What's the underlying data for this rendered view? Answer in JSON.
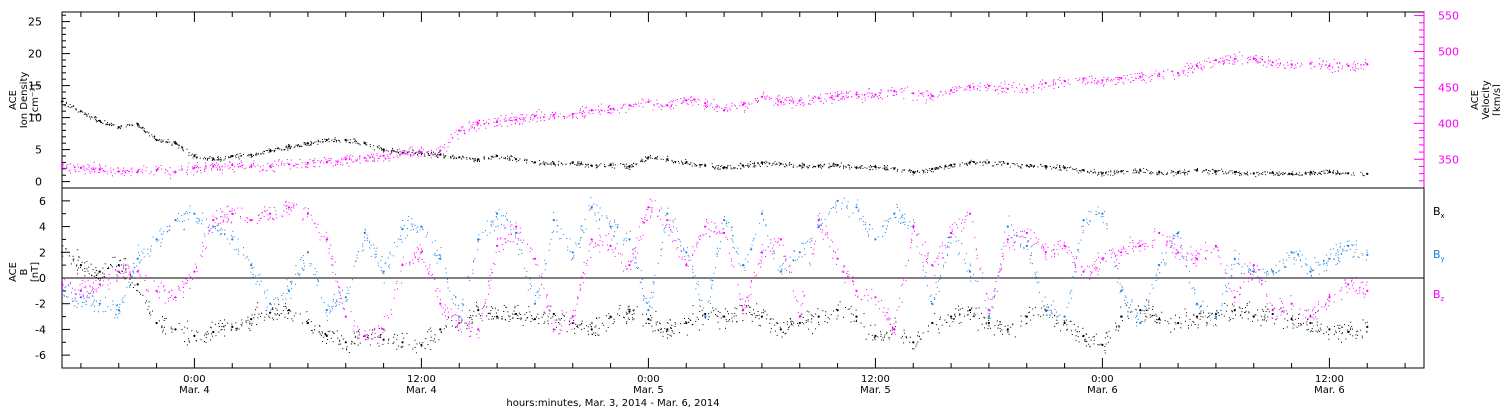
{
  "chart_data": [
    {
      "type": "scatter",
      "panel": "top",
      "xlabel": "hours:minutes, Mar.  3, 2014 - Mar.  6, 2014",
      "x_unit": "hours since Mar. 3, 2014 00:00",
      "xlim": [
        17,
        89
      ],
      "x_ticks": [
        {
          "x": 24,
          "time": "0:00",
          "date": "Mar. 4"
        },
        {
          "x": 36,
          "time": "12:00",
          "date": "Mar. 4"
        },
        {
          "x": 48,
          "time": "0:00",
          "date": "Mar. 5"
        },
        {
          "x": 60,
          "time": "12:00",
          "date": "Mar. 5"
        },
        {
          "x": 72,
          "time": "0:00",
          "date": "Mar. 6"
        },
        {
          "x": 84,
          "time": "12:00",
          "date": "Mar. 6"
        }
      ],
      "left_axis": {
        "label_lines": [
          "ACE",
          "Ion Density",
          "[cm⁻³]"
        ],
        "ylim": [
          -1,
          26.5
        ],
        "ticks": [
          "0",
          "5",
          "10",
          "15",
          "20",
          "25"
        ],
        "tick_values": [
          0,
          5,
          10,
          15,
          20,
          25
        ]
      },
      "right_axis": {
        "label_lines": [
          "ACE",
          "Velocity",
          "[km/s]"
        ],
        "ylim": [
          310,
          555
        ],
        "ticks": [
          "350",
          "400",
          "450",
          "500",
          "550"
        ],
        "tick_values": [
          350,
          400,
          450,
          500,
          550
        ],
        "color": "#ff00ff"
      },
      "series": [
        {
          "color": "#000000",
          "axis": "left",
          "x": [
            17,
            18,
            19,
            20,
            21,
            22,
            23,
            24,
            25,
            26,
            27,
            28,
            29,
            30,
            31,
            32,
            33,
            34,
            35,
            36,
            37,
            38,
            39,
            40,
            41,
            42,
            43,
            44,
            45,
            46,
            47,
            48,
            49,
            50,
            51,
            52,
            53,
            54,
            55,
            56,
            57,
            58,
            59,
            60,
            61,
            62,
            63,
            64,
            65,
            66,
            67,
            68,
            69,
            70,
            71,
            72,
            73,
            74,
            75,
            76,
            77,
            78,
            79,
            80,
            81,
            82,
            83,
            84,
            85,
            86
          ],
          "values": [
            12.5,
            11,
            9.5,
            8.5,
            9,
            6.5,
            6,
            4,
            3.5,
            4,
            4.2,
            4.8,
            5.5,
            6,
            6.5,
            6.5,
            6,
            5,
            4.5,
            4.5,
            4.2,
            3.8,
            3.5,
            4,
            3.5,
            3,
            2.8,
            3,
            2.5,
            2.6,
            2.4,
            3.8,
            3.5,
            3,
            2.5,
            2.2,
            2.5,
            3,
            2.8,
            2.5,
            2.5,
            2.6,
            2.2,
            2.3,
            2,
            1.5,
            2,
            2.6,
            3,
            3,
            2.8,
            2.5,
            2.4,
            2.2,
            1.8,
            1.3,
            1.6,
            1.7,
            1.5,
            1.5,
            1.8,
            1.6,
            1.5,
            1.3,
            1.4,
            1.2,
            1.4,
            1.5,
            1.3,
            1.2
          ]
        },
        {
          "color": "#ff00ff",
          "axis": "right",
          "x": [
            17,
            18,
            19,
            20,
            21,
            22,
            23,
            24,
            25,
            26,
            27,
            28,
            29,
            30,
            31,
            32,
            33,
            34,
            35,
            36,
            37,
            38,
            39,
            40,
            41,
            42,
            43,
            44,
            45,
            46,
            47,
            48,
            49,
            50,
            51,
            52,
            53,
            54,
            55,
            56,
            57,
            58,
            59,
            60,
            61,
            62,
            63,
            64,
            65,
            66,
            67,
            68,
            69,
            70,
            71,
            72,
            73,
            74,
            75,
            76,
            77,
            78,
            79,
            80,
            81,
            82,
            83,
            84,
            85,
            86
          ],
          "values": [
            340,
            338,
            336,
            333,
            333,
            335,
            332,
            338,
            340,
            342,
            340,
            340,
            343,
            345,
            346,
            350,
            352,
            355,
            358,
            360,
            362,
            390,
            400,
            402,
            405,
            410,
            412,
            413,
            418,
            420,
            425,
            430,
            425,
            432,
            428,
            418,
            426,
            437,
            430,
            432,
            435,
            438,
            440,
            440,
            445,
            442,
            438,
            446,
            450,
            452,
            448,
            448,
            456,
            459,
            462,
            460,
            463,
            465,
            468,
            470,
            480,
            488,
            490,
            490,
            485,
            482,
            483,
            480,
            480,
            482
          ]
        }
      ]
    },
    {
      "type": "scatter",
      "panel": "bottom",
      "xlim": [
        17,
        89
      ],
      "left_axis": {
        "label_lines": [
          "ACE",
          "B",
          "[nT]"
        ],
        "ylim": [
          -7,
          7
        ],
        "ticks": [
          "-6",
          "-4",
          "-2",
          "0",
          "2",
          "4",
          "6"
        ],
        "tick_values": [
          -6,
          -4,
          -2,
          0,
          2,
          4,
          6
        ]
      },
      "zero_line": true,
      "legend_position": "right",
      "series": [
        {
          "name": "Bx",
          "name_base": "B",
          "name_sub": "x",
          "color": "#000000",
          "x": [
            17,
            18,
            19,
            20,
            21,
            22,
            23,
            24,
            25,
            26,
            27,
            28,
            29,
            30,
            31,
            32,
            33,
            34,
            35,
            36,
            37,
            38,
            39,
            40,
            41,
            42,
            43,
            44,
            45,
            46,
            47,
            48,
            49,
            50,
            51,
            52,
            53,
            54,
            55,
            56,
            57,
            58,
            59,
            60,
            61,
            62,
            63,
            64,
            65,
            66,
            67,
            68,
            69,
            70,
            71,
            72,
            73,
            74,
            75,
            76,
            77,
            78,
            79,
            80,
            81,
            82,
            83,
            84,
            85,
            86
          ],
          "values": [
            2.0,
            1.0,
            0.5,
            1.0,
            -0.5,
            -3.5,
            -4.0,
            -4.5,
            -4.2,
            -3.8,
            -3.2,
            -2.7,
            -2.5,
            -3.5,
            -4.5,
            -5.0,
            -4.5,
            -4.8,
            -5.0,
            -5.2,
            -4.0,
            -3.5,
            -2.5,
            -3.0,
            -2.8,
            -3.2,
            -2.8,
            -3.5,
            -4.0,
            -3.0,
            -2.6,
            -3.2,
            -4.0,
            -3.5,
            -2.8,
            -3.0,
            -2.5,
            -3.0,
            -4.0,
            -3.5,
            -3.0,
            -2.5,
            -3.0,
            -4.5,
            -4.0,
            -5.0,
            -3.5,
            -3.0,
            -2.5,
            -3.5,
            -4.0,
            -3.0,
            -2.5,
            -3.5,
            -4.5,
            -5.2,
            -3.0,
            -2.5,
            -3.2,
            -3.5,
            -3.0,
            -2.8,
            -2.5,
            -3.0,
            -2.8,
            -3.2,
            -3.5,
            -4.0,
            -4.2,
            -3.8
          ]
        },
        {
          "name": "By",
          "name_base": "B",
          "name_sub": "y",
          "color": "#1e7fe0",
          "x": [
            17,
            18,
            19,
            20,
            21,
            22,
            23,
            24,
            25,
            26,
            27,
            28,
            29,
            30,
            31,
            32,
            33,
            34,
            35,
            36,
            37,
            38,
            39,
            40,
            41,
            42,
            43,
            44,
            45,
            46,
            47,
            48,
            49,
            50,
            51,
            52,
            53,
            54,
            55,
            56,
            57,
            58,
            59,
            60,
            61,
            62,
            63,
            64,
            65,
            66,
            67,
            68,
            69,
            70,
            71,
            72,
            73,
            74,
            75,
            76,
            77,
            78,
            79,
            80,
            81,
            82,
            83,
            84,
            85,
            86
          ],
          "values": [
            -1.0,
            -1.5,
            -2.0,
            -2.5,
            1.5,
            3.0,
            4.5,
            5.0,
            4.0,
            3.0,
            1.0,
            -2.0,
            -1.0,
            2.0,
            -2.5,
            -1.5,
            3.5,
            0.5,
            3.8,
            4.0,
            1.5,
            -3.0,
            3.0,
            5.0,
            3.5,
            -2.0,
            4.5,
            2.0,
            5.5,
            4.0,
            3.0,
            -2.5,
            5.0,
            2.0,
            -3.0,
            4.5,
            1.0,
            5.0,
            0.5,
            2.0,
            4.0,
            6.0,
            5.5,
            3.0,
            5.0,
            4.0,
            -2.0,
            3.5,
            0.5,
            -3.0,
            4.0,
            2.5,
            -2.5,
            -3.0,
            4.5,
            5.0,
            -1.0,
            -3.5,
            1.0,
            3.5,
            -2.0,
            -3.0,
            1.5,
            0.5,
            0.5,
            2.0,
            0.5,
            1.5,
            2.5,
            1.8
          ]
        },
        {
          "name": "Bz",
          "name_base": "B",
          "name_sub": "z",
          "color": "#ff00ff",
          "x": [
            17,
            18,
            19,
            20,
            21,
            22,
            23,
            24,
            25,
            26,
            27,
            28,
            29,
            30,
            31,
            32,
            33,
            34,
            35,
            36,
            37,
            38,
            39,
            40,
            41,
            42,
            43,
            44,
            45,
            46,
            47,
            48,
            49,
            50,
            51,
            52,
            53,
            54,
            55,
            56,
            57,
            58,
            59,
            60,
            61,
            62,
            63,
            64,
            65,
            66,
            67,
            68,
            69,
            70,
            71,
            72,
            73,
            74,
            75,
            76,
            77,
            78,
            79,
            80,
            81,
            82,
            83,
            84,
            85,
            86
          ],
          "values": [
            -0.5,
            -1.0,
            -0.5,
            0.5,
            0.5,
            -1.0,
            -1.5,
            0.5,
            4.5,
            5.0,
            4.5,
            5.0,
            5.5,
            5.0,
            3.0,
            -3.0,
            -4.5,
            -4.0,
            1.0,
            2.0,
            -2.0,
            -3.5,
            -4.0,
            2.5,
            4.0,
            1.5,
            -4.0,
            -3.0,
            3.0,
            2.5,
            1.0,
            5.5,
            4.5,
            1.0,
            4.0,
            3.5,
            -2.5,
            2.0,
            3.0,
            -3.0,
            4.5,
            1.5,
            -1.0,
            -1.5,
            -4.0,
            4.0,
            1.0,
            3.5,
            5.0,
            -2.5,
            3.0,
            3.5,
            2.0,
            2.5,
            0.5,
            1.5,
            2.0,
            2.5,
            3.5,
            2.0,
            1.5,
            2.5,
            -1.5,
            1.0,
            -2.5,
            -2.0,
            -3.0,
            -1.5,
            -0.5,
            -1.0
          ]
        }
      ]
    }
  ]
}
